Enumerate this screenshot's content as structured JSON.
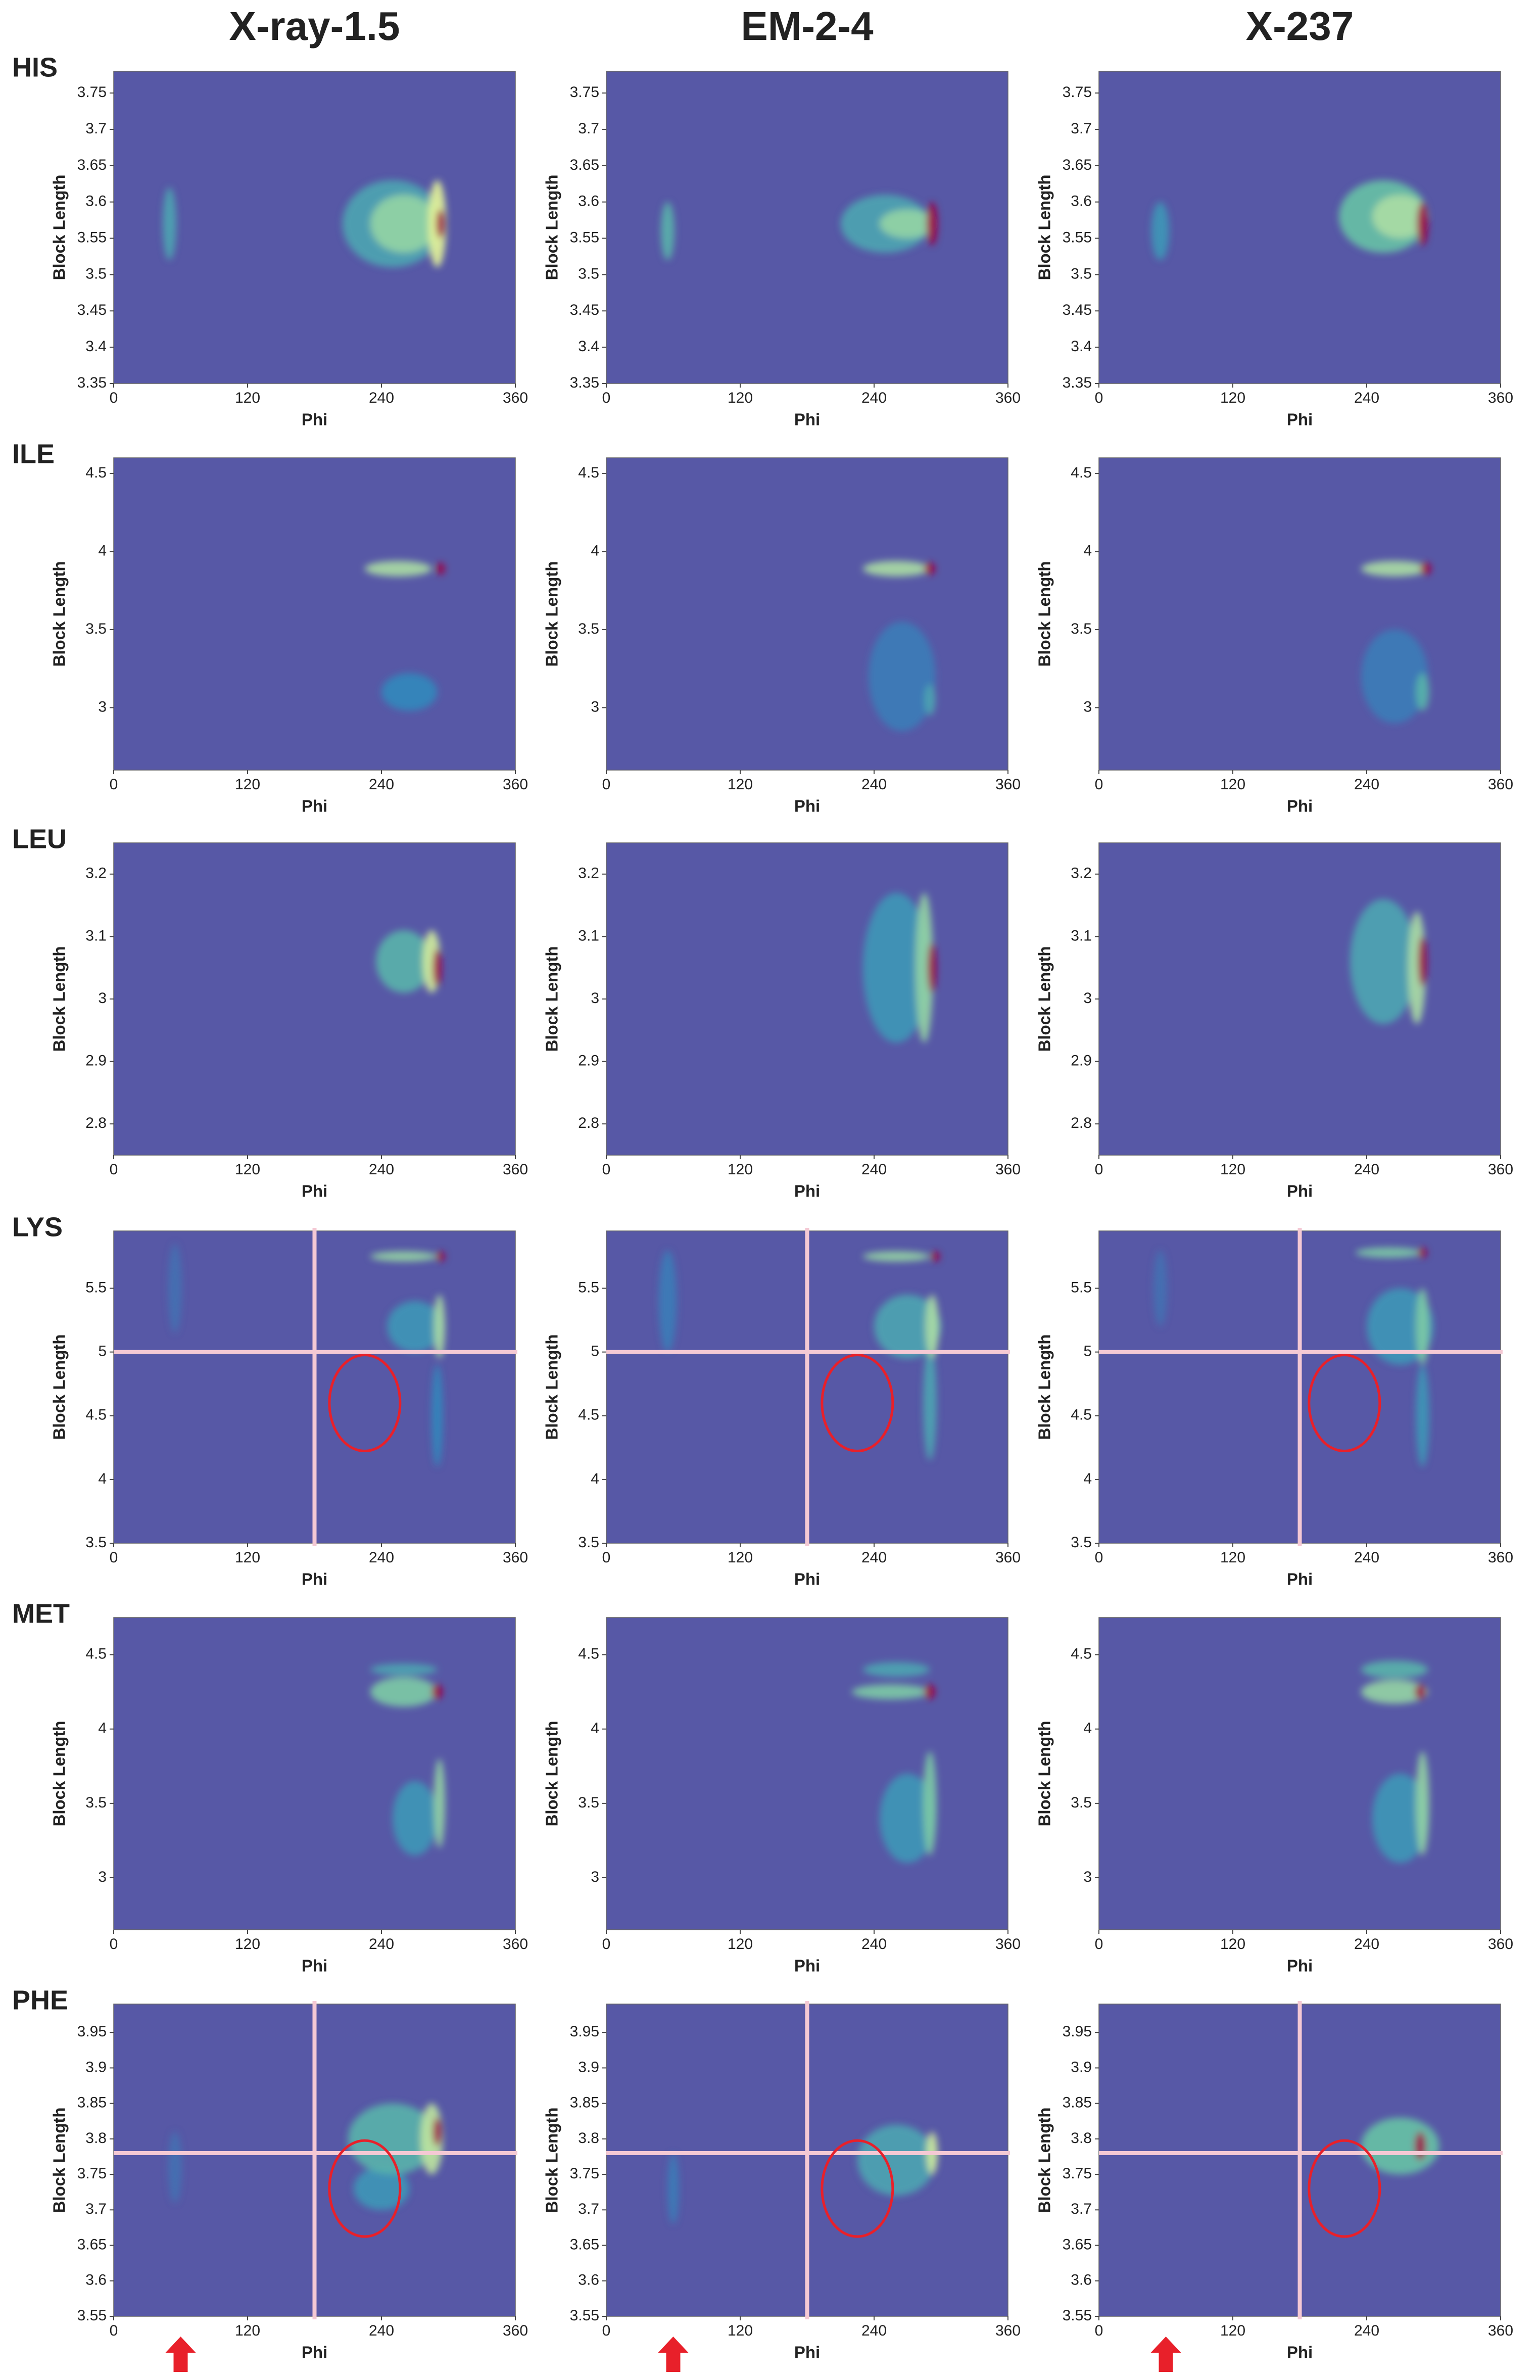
{
  "column_titles": [
    "X-ray-1.5",
    "EM-2-4",
    "X-237"
  ],
  "row_labels": [
    "HIS",
    "ILE",
    "LEU",
    "LYS",
    "MET",
    "PHE"
  ],
  "chart_data": [
    {
      "type": "heatmap",
      "xlabel": "Phi",
      "ylabel": "Block Length",
      "xlim": [
        0,
        360
      ],
      "xticks": [
        0,
        120,
        240,
        360
      ],
      "ylim": [
        3.35,
        3.78
      ],
      "yticks": [
        3.35,
        3.4,
        3.45,
        3.5,
        3.55,
        3.6,
        3.65,
        3.7,
        3.75
      ],
      "blobs": {
        "x": [
          50,
          250,
          260,
          290,
          293
        ],
        "y": [
          3.57,
          3.57,
          3.57,
          3.57,
          3.57
        ],
        "values": [
          0.35,
          0.35,
          0.55,
          0.75,
          1
        ],
        "x_spread": [
          6,
          45,
          30,
          8,
          4
        ],
        "y_spread": [
          0.05,
          0.06,
          0.04,
          0.06,
          0.02
        ]
      }
    },
    {
      "type": "heatmap",
      "xlabel": "Phi",
      "ylabel": "Block Length",
      "xlim": [
        0,
        360
      ],
      "xticks": [
        0,
        120,
        240,
        360
      ],
      "ylim": [
        3.35,
        3.78
      ],
      "yticks": [
        3.35,
        3.4,
        3.45,
        3.5,
        3.55,
        3.6,
        3.65,
        3.7,
        3.75
      ],
      "blobs": {
        "x": [
          55,
          250,
          270,
          292
        ],
        "y": [
          3.56,
          3.57,
          3.57,
          3.57
        ],
        "values": [
          0.4,
          0.35,
          0.55,
          1
        ],
        "x_spread": [
          6,
          40,
          25,
          5
        ],
        "y_spread": [
          0.04,
          0.04,
          0.02,
          0.03
        ]
      }
    },
    {
      "type": "heatmap",
      "xlabel": "Phi",
      "ylabel": "Block Length",
      "xlim": [
        0,
        360
      ],
      "xticks": [
        0,
        120,
        240,
        360
      ],
      "ylim": [
        3.35,
        3.78
      ],
      "yticks": [
        3.35,
        3.4,
        3.45,
        3.5,
        3.55,
        3.6,
        3.65,
        3.7,
        3.75
      ],
      "blobs": {
        "x": [
          55,
          255,
          270,
          290
        ],
        "y": [
          3.56,
          3.58,
          3.58,
          3.57
        ],
        "values": [
          0.3,
          0.45,
          0.6,
          1
        ],
        "x_spread": [
          8,
          40,
          25,
          5
        ],
        "y_spread": [
          0.04,
          0.05,
          0.03,
          0.03
        ]
      }
    },
    {
      "type": "heatmap",
      "xlabel": "Phi",
      "ylabel": "Block Length",
      "xlim": [
        0,
        360
      ],
      "xticks": [
        0,
        120,
        240,
        360
      ],
      "ylim": [
        2.6,
        4.6
      ],
      "yticks": [
        3,
        3.5,
        4,
        4.5
      ],
      "blobs": {
        "x": [
          265,
          255,
          293
        ],
        "y": [
          3.1,
          3.89,
          3.89
        ],
        "values": [
          0.25,
          0.6,
          1
        ],
        "x_spread": [
          25,
          30,
          4
        ],
        "y_spread": [
          0.12,
          0.05,
          0.04
        ]
      }
    },
    {
      "type": "heatmap",
      "xlabel": "Phi",
      "ylabel": "Block Length",
      "xlim": [
        0,
        360
      ],
      "xticks": [
        0,
        120,
        240,
        360
      ],
      "ylim": [
        2.6,
        4.6
      ],
      "yticks": [
        3,
        3.5,
        4,
        4.5
      ],
      "blobs": {
        "x": [
          265,
          290,
          260,
          290
        ],
        "y": [
          3.2,
          3.05,
          3.89,
          3.89
        ],
        "values": [
          0.2,
          0.35,
          0.6,
          1
        ],
        "x_spread": [
          30,
          5,
          30,
          5
        ],
        "y_spread": [
          0.35,
          0.1,
          0.05,
          0.04
        ]
      }
    },
    {
      "type": "heatmap",
      "xlabel": "Phi",
      "ylabel": "Block Length",
      "xlim": [
        0,
        360
      ],
      "xticks": [
        0,
        120,
        240,
        360
      ],
      "ylim": [
        2.6,
        4.6
      ],
      "yticks": [
        3,
        3.5,
        4,
        4.5
      ],
      "blobs": {
        "x": [
          265,
          290,
          265,
          293
        ],
        "y": [
          3.2,
          3.1,
          3.89,
          3.89
        ],
        "values": [
          0.2,
          0.4,
          0.6,
          1
        ],
        "x_spread": [
          30,
          6,
          30,
          5
        ],
        "y_spread": [
          0.3,
          0.12,
          0.05,
          0.04
        ]
      }
    },
    {
      "type": "heatmap",
      "xlabel": "Phi",
      "ylabel": "Block Length",
      "xlim": [
        0,
        360
      ],
      "xticks": [
        0,
        120,
        240,
        360
      ],
      "ylim": [
        2.75,
        3.25
      ],
      "yticks": [
        2.8,
        2.9,
        3,
        3.1,
        3.2
      ],
      "blobs": {
        "x": [
          260,
          285,
          290
        ],
        "y": [
          3.06,
          3.06,
          3.05
        ],
        "values": [
          0.4,
          0.7,
          1
        ],
        "x_spread": [
          25,
          8,
          4
        ],
        "y_spread": [
          0.05,
          0.05,
          0.03
        ]
      }
    },
    {
      "type": "heatmap",
      "xlabel": "Phi",
      "ylabel": "Block Length",
      "xlim": [
        0,
        360
      ],
      "xticks": [
        0,
        120,
        240,
        360
      ],
      "ylim": [
        2.75,
        3.25
      ],
      "yticks": [
        2.8,
        2.9,
        3,
        3.1,
        3.2
      ],
      "blobs": {
        "x": [
          260,
          285,
          292
        ],
        "y": [
          3.05,
          3.05,
          3.05
        ],
        "values": [
          0.3,
          0.55,
          1
        ],
        "x_spread": [
          30,
          8,
          4
        ],
        "y_spread": [
          0.12,
          0.12,
          0.04
        ]
      }
    },
    {
      "type": "heatmap",
      "xlabel": "Phi",
      "ylabel": "Block Length",
      "xlim": [
        0,
        360
      ],
      "xticks": [
        0,
        120,
        240,
        360
      ],
      "ylim": [
        2.75,
        3.25
      ],
      "yticks": [
        2.8,
        2.9,
        3,
        3.1,
        3.2
      ],
      "blobs": {
        "x": [
          255,
          285,
          290
        ],
        "y": [
          3.06,
          3.05,
          3.06
        ],
        "values": [
          0.35,
          0.6,
          1
        ],
        "x_spread": [
          30,
          8,
          4
        ],
        "y_spread": [
          0.1,
          0.09,
          0.04
        ]
      }
    },
    {
      "type": "heatmap",
      "xlabel": "Phi",
      "ylabel": "Block Length",
      "xlim": [
        0,
        360
      ],
      "xticks": [
        0,
        120,
        240,
        360
      ],
      "ylim": [
        3.5,
        5.95
      ],
      "yticks": [
        3.5,
        4,
        4.5,
        5,
        5.5
      ],
      "blobs": {
        "x": [
          55,
          290,
          270,
          260,
          292,
          293
        ],
        "y": [
          5.5,
          4.5,
          5.2,
          5.75,
          5.2,
          5.75
        ],
        "values": [
          0.15,
          0.25,
          0.3,
          0.55,
          0.6,
          1
        ],
        "x_spread": [
          6,
          5,
          25,
          30,
          5,
          4
        ],
        "y_spread": [
          0.35,
          0.4,
          0.2,
          0.04,
          0.25,
          0.04
        ]
      },
      "ref_x": 180,
      "ref_y": 5,
      "highlight": {
        "x": 225,
        "y": 4.6
      }
    },
    {
      "type": "heatmap",
      "xlabel": "Phi",
      "ylabel": "Block Length",
      "xlim": [
        0,
        360
      ],
      "xticks": [
        0,
        120,
        240,
        360
      ],
      "ylim": [
        3.5,
        5.95
      ],
      "yticks": [
        3.5,
        4,
        4.5,
        5,
        5.5
      ],
      "blobs": {
        "x": [
          55,
          290,
          270,
          260,
          292,
          295
        ],
        "y": [
          5.4,
          4.6,
          5.2,
          5.75,
          5.2,
          5.75
        ],
        "values": [
          0.2,
          0.35,
          0.35,
          0.55,
          0.6,
          1
        ],
        "x_spread": [
          8,
          6,
          30,
          30,
          6,
          4
        ],
        "y_spread": [
          0.4,
          0.45,
          0.25,
          0.04,
          0.25,
          0.04
        ]
      },
      "ref_x": 180,
      "ref_y": 5,
      "highlight": {
        "x": 225,
        "y": 4.6
      }
    },
    {
      "type": "heatmap",
      "xlabel": "Phi",
      "ylabel": "Block Length",
      "xlim": [
        0,
        360
      ],
      "xticks": [
        0,
        120,
        240,
        360
      ],
      "ylim": [
        3.5,
        5.95
      ],
      "yticks": [
        3.5,
        4,
        4.5,
        5,
        5.5
      ],
      "blobs": {
        "x": [
          55,
          290,
          270,
          260,
          290,
          290
        ],
        "y": [
          5.5,
          4.5,
          5.2,
          5.78,
          5.2,
          5.78
        ],
        "values": [
          0.15,
          0.3,
          0.3,
          0.5,
          0.5,
          1
        ],
        "x_spread": [
          6,
          6,
          30,
          30,
          6,
          4
        ],
        "y_spread": [
          0.3,
          0.4,
          0.3,
          0.04,
          0.3,
          0.04
        ]
      },
      "ref_x": 180,
      "ref_y": 5,
      "highlight": {
        "x": 220,
        "y": 4.6
      }
    },
    {
      "type": "heatmap",
      "xlabel": "Phi",
      "ylabel": "Block Length",
      "xlim": [
        0,
        360
      ],
      "xticks": [
        0,
        120,
        240,
        360
      ],
      "ylim": [
        2.65,
        4.75
      ],
      "yticks": [
        3,
        3.5,
        4,
        4.5
      ],
      "blobs": {
        "x": [
          270,
          260,
          260,
          292,
          290
        ],
        "y": [
          3.4,
          4.4,
          4.25,
          3.5,
          4.25
        ],
        "values": [
          0.3,
          0.35,
          0.5,
          0.55,
          1
        ],
        "x_spread": [
          20,
          30,
          30,
          5,
          5
        ],
        "y_spread": [
          0.25,
          0.04,
          0.1,
          0.3,
          0.05
        ]
      }
    },
    {
      "type": "heatmap",
      "xlabel": "Phi",
      "ylabel": "Block Length",
      "xlim": [
        0,
        360
      ],
      "xticks": [
        0,
        120,
        240,
        360
      ],
      "ylim": [
        2.65,
        4.75
      ],
      "yticks": [
        3,
        3.5,
        4,
        4.5
      ],
      "blobs": {
        "x": [
          270,
          260,
          255,
          290,
          290
        ],
        "y": [
          3.4,
          4.4,
          4.25,
          3.5,
          4.25
        ],
        "values": [
          0.3,
          0.35,
          0.5,
          0.5,
          1
        ],
        "x_spread": [
          25,
          30,
          35,
          6,
          5
        ],
        "y_spread": [
          0.3,
          0.05,
          0.05,
          0.35,
          0.05
        ]
      }
    },
    {
      "type": "heatmap",
      "xlabel": "Phi",
      "ylabel": "Block Length",
      "xlim": [
        0,
        360
      ],
      "xticks": [
        0,
        120,
        240,
        360
      ],
      "ylim": [
        2.65,
        4.75
      ],
      "yticks": [
        3,
        3.5,
        4,
        4.5
      ],
      "blobs": {
        "x": [
          270,
          265,
          265,
          290,
          288
        ],
        "y": [
          3.4,
          4.4,
          4.25,
          3.5,
          4.25
        ],
        "values": [
          0.3,
          0.4,
          0.55,
          0.55,
          1
        ],
        "x_spread": [
          25,
          30,
          30,
          6,
          5
        ],
        "y_spread": [
          0.3,
          0.06,
          0.08,
          0.35,
          0.05
        ]
      }
    },
    {
      "type": "heatmap",
      "xlabel": "Phi",
      "ylabel": "Block Length",
      "xlim": [
        0,
        360
      ],
      "xticks": [
        0,
        120,
        240,
        360
      ],
      "ylim": [
        3.55,
        3.99
      ],
      "yticks": [
        3.55,
        3.6,
        3.65,
        3.7,
        3.75,
        3.8,
        3.85,
        3.9,
        3.95
      ],
      "blobs": {
        "x": [
          55,
          240,
          250,
          285,
          290
        ],
        "y": [
          3.76,
          3.73,
          3.8,
          3.8,
          3.81
        ],
        "values": [
          0.15,
          0.3,
          0.4,
          0.65,
          1
        ],
        "x_spread": [
          6,
          25,
          40,
          10,
          4
        ],
        "y_spread": [
          0.05,
          0.03,
          0.05,
          0.05,
          0.02
        ]
      },
      "ref_x": 180,
      "ref_y": 3.78,
      "highlight": {
        "x": 225,
        "y": 3.73
      },
      "arrow_x": 60
    },
    {
      "type": "heatmap",
      "xlabel": "Phi",
      "ylabel": "Block Length",
      "xlim": [
        0,
        360
      ],
      "xticks": [
        0,
        120,
        240,
        360
      ],
      "ylim": [
        3.55,
        3.99
      ],
      "yticks": [
        3.55,
        3.6,
        3.65,
        3.7,
        3.75,
        3.8,
        3.85,
        3.9,
        3.95
      ],
      "blobs": {
        "x": [
          60,
          260,
          292
        ],
        "y": [
          3.73,
          3.77,
          3.78
        ],
        "values": [
          0.2,
          0.35,
          0.7
        ],
        "x_spread": [
          5,
          35,
          5
        ],
        "y_spread": [
          0.05,
          0.05,
          0.03
        ]
      },
      "ref_x": 180,
      "ref_y": 3.78,
      "highlight": {
        "x": 225,
        "y": 3.73
      },
      "arrow_x": 60
    },
    {
      "type": "heatmap",
      "xlabel": "Phi",
      "ylabel": "Block Length",
      "xlim": [
        0,
        360
      ],
      "xticks": [
        0,
        120,
        240,
        360
      ],
      "ylim": [
        3.55,
        3.99
      ],
      "yticks": [
        3.55,
        3.6,
        3.65,
        3.7,
        3.75,
        3.8,
        3.85,
        3.9,
        3.95
      ],
      "blobs": {
        "x": [
          270,
          288
        ],
        "y": [
          3.79,
          3.79
        ],
        "values": [
          0.45,
          1
        ],
        "x_spread": [
          35,
          5
        ],
        "y_spread": [
          0.04,
          0.02
        ]
      },
      "ref_x": 180,
      "ref_y": 3.78,
      "highlight": {
        "x": 220,
        "y": 3.73
      },
      "arrow_x": 60
    }
  ]
}
